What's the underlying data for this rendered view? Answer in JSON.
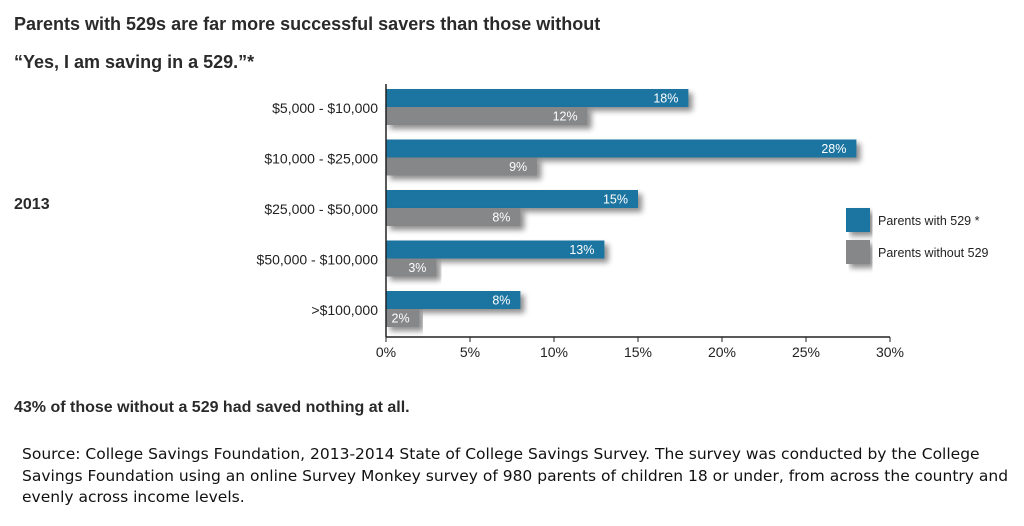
{
  "title": "Parents with 529s are far more successful savers than those without",
  "subtitle": "“Yes, I am saving in a 529.”*",
  "year_label": "2013",
  "footnote": "43% of those without a 529 had saved nothing at all.",
  "source": "Source: College Savings Foundation, 2013-2014 State of College Savings Survey. The survey  was conducted by the College Savings Foundation using an online Survey Monkey survey of 980 parents of children 18 or under, from across the country and evenly across income levels.",
  "colors": {
    "with529": "#1a74a1",
    "without529": "#858789"
  },
  "chart_data": {
    "type": "bar",
    "orientation": "horizontal",
    "categories": [
      "$5,000 - $10,000",
      "$10,000 - $25,000",
      "$25,000 - $50,000",
      "$50,000 - $100,000",
      ">$100,000"
    ],
    "series": [
      {
        "name": "Parents with 529 *",
        "values": [
          18,
          28,
          15,
          13,
          8
        ],
        "labels": [
          "18%",
          "28%",
          "15%",
          "13%",
          "8%"
        ]
      },
      {
        "name": "Parents without 529",
        "values": [
          12,
          9,
          8,
          3,
          2
        ],
        "labels": [
          "12%",
          "9%",
          "8%",
          "3%",
          "2%"
        ]
      }
    ],
    "x_ticks": [
      "0%",
      "5%",
      "10%",
      "15%",
      "20%",
      "25%",
      "30%"
    ],
    "xlim": [
      0,
      30
    ],
    "legend_position": "right",
    "grid": false
  }
}
